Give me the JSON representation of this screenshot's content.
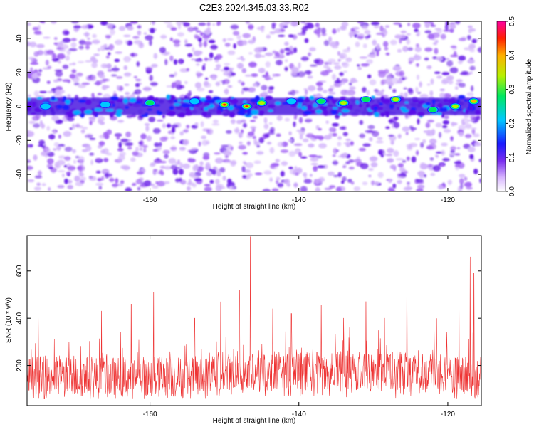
{
  "chart_data": [
    {
      "type": "heatmap",
      "title": "C2E3.2024.345.03.33.R02",
      "xlabel": "Height of straight line (km)",
      "ylabel": "Frequency (Hz)",
      "xlim": [
        -176.5,
        -115.5
      ],
      "ylim": [
        -50,
        50
      ],
      "xticks": [
        -160,
        -140,
        -120
      ],
      "yticks": [
        -40,
        -20,
        0,
        20,
        40
      ],
      "grid": false,
      "colorbar": {
        "label": "Normalized spectral amplitude",
        "range": [
          0,
          0.5
        ],
        "ticks": [
          "0.0",
          "0.1",
          "0.2",
          "0.3",
          "0.4",
          "0.5"
        ]
      },
      "band": {
        "center_hz": 0,
        "half_width_hz": 5
      },
      "hotspots": [
        {
          "x": -174,
          "y": 0,
          "value": 0.18
        },
        {
          "x": -166,
          "y": 1,
          "value": 0.2
        },
        {
          "x": -160,
          "y": 2,
          "value": 0.26
        },
        {
          "x": -154,
          "y": 3,
          "value": 0.2
        },
        {
          "x": -150,
          "y": 1,
          "value": 0.42
        },
        {
          "x": -147,
          "y": 0,
          "value": 0.46
        },
        {
          "x": -145,
          "y": 2,
          "value": 0.32
        },
        {
          "x": -141,
          "y": 3,
          "value": 0.22
        },
        {
          "x": -137,
          "y": 3,
          "value": 0.25
        },
        {
          "x": -134,
          "y": 2,
          "value": 0.3
        },
        {
          "x": -131,
          "y": 4,
          "value": 0.24
        },
        {
          "x": -127,
          "y": 4,
          "value": 0.3
        },
        {
          "x": -122,
          "y": -2,
          "value": 0.28
        },
        {
          "x": -119,
          "y": 0,
          "value": 0.34
        },
        {
          "x": -116.5,
          "y": 3,
          "value": 0.4
        }
      ]
    },
    {
      "type": "line",
      "xlabel": "Height of straight line (km)",
      "ylabel": "SNR (10 * v/v)",
      "xlim": [
        -176.5,
        -115.5
      ],
      "ylim": [
        30,
        750
      ],
      "xticks": [
        -160,
        -140,
        -120
      ],
      "yticks": [
        200,
        400,
        600
      ],
      "grid": false,
      "color": "#ee3333",
      "baseline": 150,
      "peaks": [
        {
          "x": -175,
          "y": 405
        },
        {
          "x": -166.5,
          "y": 430
        },
        {
          "x": -162.5,
          "y": 460
        },
        {
          "x": -159.5,
          "y": 510
        },
        {
          "x": -154,
          "y": 400
        },
        {
          "x": -150.5,
          "y": 470
        },
        {
          "x": -148,
          "y": 520
        },
        {
          "x": -146.5,
          "y": 745
        },
        {
          "x": -143.5,
          "y": 440
        },
        {
          "x": -141,
          "y": 420
        },
        {
          "x": -137,
          "y": 455
        },
        {
          "x": -134,
          "y": 400
        },
        {
          "x": -131,
          "y": 470
        },
        {
          "x": -128.5,
          "y": 400
        },
        {
          "x": -125.5,
          "y": 580
        },
        {
          "x": -121.5,
          "y": 400
        },
        {
          "x": -118.5,
          "y": 500
        },
        {
          "x": -117,
          "y": 660
        },
        {
          "x": -116.5,
          "y": 590
        }
      ]
    }
  ]
}
